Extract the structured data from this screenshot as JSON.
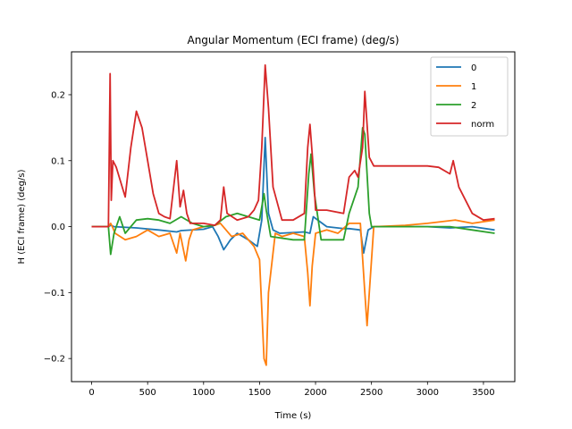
{
  "chart_data": {
    "type": "line",
    "title": "Angular Momentum (ECI frame) (deg/s)",
    "xlabel": "Time (s)",
    "ylabel": "H (ECI frame) (deg/s)",
    "xlim": [
      -180,
      3780
    ],
    "ylim": [
      -0.235,
      0.265
    ],
    "xticks": [
      0,
      500,
      1000,
      1500,
      2000,
      2500,
      3000,
      3500
    ],
    "xtick_labels": [
      "0",
      "500",
      "1000",
      "1500",
      "2000",
      "2500",
      "3000",
      "3500"
    ],
    "yticks": [
      -0.2,
      -0.1,
      0.0,
      0.1,
      0.2
    ],
    "ytick_labels": [
      "−0.2",
      "−0.1",
      "0.0",
      "0.1",
      "0.2"
    ],
    "grid": false,
    "legend_position": "top-right",
    "series": [
      {
        "name": "0",
        "color": "#1f77b4",
        "x": [
          0,
          150,
          170,
          200,
          400,
          600,
          760,
          800,
          1000,
          1080,
          1130,
          1180,
          1240,
          1300,
          1400,
          1480,
          1520,
          1550,
          1580,
          1620,
          1680,
          1900,
          1950,
          1980,
          2100,
          2250,
          2300,
          2400,
          2430,
          2470,
          2520,
          3000,
          3200,
          3400,
          3600
        ],
        "y": [
          0.0,
          0.0,
          0.002,
          0.0,
          -0.002,
          -0.005,
          -0.008,
          -0.006,
          -0.004,
          0.0,
          -0.015,
          -0.035,
          -0.02,
          -0.01,
          -0.02,
          -0.03,
          0.01,
          0.135,
          0.02,
          -0.005,
          -0.01,
          -0.008,
          -0.01,
          0.015,
          0.0,
          -0.003,
          -0.003,
          -0.005,
          -0.04,
          -0.005,
          0.0,
          0.0,
          -0.002,
          0.0,
          -0.005
        ]
      },
      {
        "name": "1",
        "color": "#ff7f0e",
        "x": [
          0,
          150,
          170,
          185,
          210,
          300,
          400,
          500,
          600,
          700,
          760,
          790,
          840,
          870,
          900,
          1000,
          1100,
          1150,
          1250,
          1350,
          1450,
          1500,
          1540,
          1560,
          1580,
          1640,
          1700,
          1800,
          1900,
          1930,
          1950,
          1970,
          2000,
          2100,
          2200,
          2300,
          2400,
          2440,
          2460,
          2480,
          2520,
          2800,
          3000,
          3250,
          3400,
          3600
        ],
        "y": [
          0.0,
          0.0,
          0.005,
          0.0,
          -0.01,
          -0.02,
          -0.015,
          -0.005,
          -0.015,
          -0.01,
          -0.04,
          -0.01,
          -0.052,
          -0.02,
          -0.005,
          0.0,
          0.002,
          0.005,
          -0.015,
          -0.01,
          -0.03,
          -0.05,
          -0.2,
          -0.21,
          -0.1,
          -0.01,
          -0.015,
          -0.01,
          -0.015,
          -0.07,
          -0.12,
          -0.06,
          -0.01,
          -0.005,
          -0.01,
          0.005,
          0.005,
          -0.1,
          -0.15,
          -0.1,
          0.0,
          0.002,
          0.005,
          0.01,
          0.005,
          0.01
        ]
      },
      {
        "name": "2",
        "color": "#2ca02c",
        "x": [
          0,
          150,
          170,
          200,
          250,
          300,
          400,
          500,
          600,
          700,
          800,
          900,
          1000,
          1100,
          1200,
          1300,
          1400,
          1500,
          1540,
          1560,
          1600,
          1800,
          1900,
          1940,
          1960,
          1990,
          2050,
          2250,
          2300,
          2380,
          2420,
          2440,
          2480,
          2500,
          2800,
          3200,
          3400,
          3600
        ],
        "y": [
          0.0,
          0.0,
          -0.042,
          -0.01,
          0.015,
          -0.01,
          0.01,
          0.012,
          0.01,
          0.005,
          0.015,
          0.005,
          0.0,
          0.002,
          0.015,
          0.02,
          0.015,
          0.01,
          0.05,
          0.025,
          -0.015,
          -0.02,
          -0.02,
          0.08,
          0.11,
          0.05,
          -0.02,
          -0.02,
          0.02,
          0.06,
          0.15,
          0.14,
          0.02,
          0.0,
          0.0,
          0.0,
          -0.005,
          -0.01
        ]
      },
      {
        "name": "norm",
        "color": "#d62728",
        "x": [
          0,
          150,
          165,
          175,
          190,
          220,
          300,
          350,
          400,
          450,
          500,
          550,
          600,
          650,
          700,
          760,
          790,
          820,
          850,
          880,
          900,
          1000,
          1100,
          1150,
          1180,
          1210,
          1300,
          1400,
          1450,
          1490,
          1520,
          1550,
          1580,
          1620,
          1700,
          1800,
          1900,
          1930,
          1950,
          1975,
          2000,
          2100,
          2250,
          2300,
          2350,
          2380,
          2420,
          2440,
          2480,
          2520,
          2800,
          3000,
          3100,
          3200,
          3230,
          3280,
          3400,
          3500,
          3600
        ],
        "y": [
          0.0,
          0.0,
          0.232,
          0.04,
          0.1,
          0.09,
          0.045,
          0.12,
          0.175,
          0.15,
          0.1,
          0.05,
          0.02,
          0.015,
          0.012,
          0.1,
          0.03,
          0.055,
          0.02,
          0.005,
          0.005,
          0.005,
          0.002,
          0.01,
          0.06,
          0.02,
          0.01,
          0.015,
          0.025,
          0.04,
          0.12,
          0.245,
          0.18,
          0.06,
          0.01,
          0.01,
          0.02,
          0.12,
          0.155,
          0.1,
          0.025,
          0.025,
          0.02,
          0.075,
          0.085,
          0.075,
          0.12,
          0.205,
          0.105,
          0.092,
          0.092,
          0.092,
          0.09,
          0.08,
          0.1,
          0.06,
          0.02,
          0.01,
          0.012
        ]
      }
    ]
  }
}
